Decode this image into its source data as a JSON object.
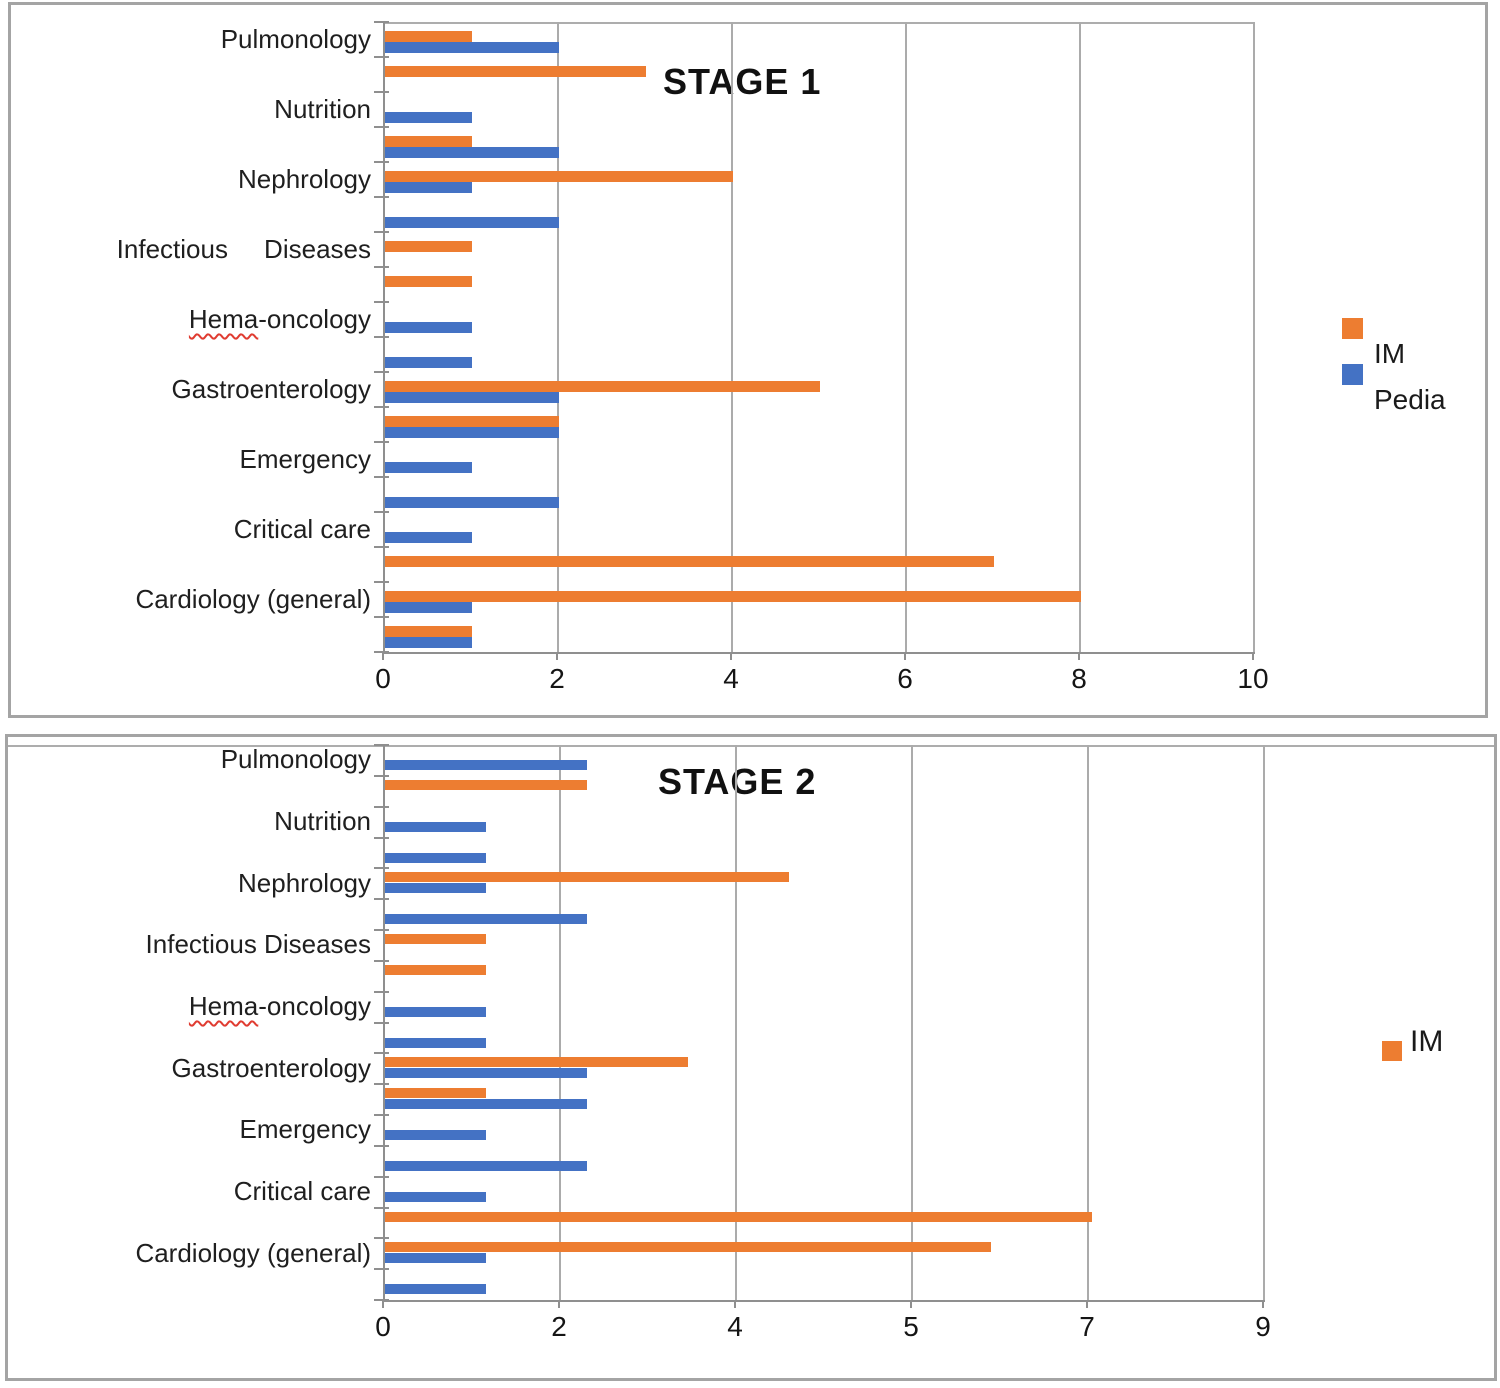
{
  "page": {
    "background": "#ffffff"
  },
  "colors": {
    "im": "#ED7D31",
    "pedia": "#4472C4",
    "gridline": "#ababab",
    "axis": "#8f8f8f"
  },
  "chart_data": [
    {
      "type": "bar",
      "orientation": "horizontal",
      "title": "STAGE 1",
      "categories": [
        "Pulmonology",
        "",
        "Nutrition",
        "",
        "Nephrology",
        "",
        "Infectious     Diseases",
        "",
        "Hema-oncology",
        "",
        "Gastroenterology",
        "",
        "Emergency",
        "",
        "Critical care",
        "",
        "Cardiology (general)",
        ""
      ],
      "series": [
        {
          "name": "IM",
          "color": "#ED7D31",
          "values": [
            1,
            3,
            0,
            1,
            4,
            0,
            1,
            1,
            0,
            0,
            5,
            2,
            0,
            0,
            0,
            7,
            8,
            1
          ]
        },
        {
          "name": "Pedia",
          "color": "#4472C4",
          "values": [
            2,
            0,
            1,
            2,
            1,
            2,
            0,
            0,
            1,
            1,
            2,
            2,
            1,
            2,
            1,
            0,
            1,
            1
          ]
        }
      ],
      "xlim": [
        0,
        10
      ],
      "x_tick_labels": [
        "0",
        "2",
        "4",
        "6",
        "8",
        "10"
      ],
      "x_tick_values": [
        0,
        2,
        4,
        6,
        8,
        10
      ],
      "grid": true,
      "legend_position": "right",
      "legend_entries": [
        "IM",
        "Pedia"
      ],
      "spellcheck_flagged": [
        "Hema-oncology"
      ]
    },
    {
      "type": "bar",
      "orientation": "horizontal",
      "title": "STAGE 2",
      "categories": [
        "Pulmonology",
        "",
        "Nutrition",
        "",
        "Nephrology",
        "",
        "Infectious Diseases",
        "",
        "Hema-oncology",
        "",
        "Gastroenterology",
        "",
        "Emergency",
        "",
        "Critical care",
        "",
        "Cardiology (general)",
        ""
      ],
      "series": [
        {
          "name": "IM",
          "color": "#ED7D31",
          "values": [
            0,
            2,
            0,
            0,
            4,
            0,
            1,
            1,
            0,
            0,
            3,
            1,
            0,
            0,
            0,
            7,
            6,
            0
          ]
        },
        {
          "name": "Pedia",
          "color": "#4472C4",
          "values": [
            2,
            0,
            1,
            1,
            1,
            2,
            0,
            0,
            1,
            1,
            2,
            2,
            1,
            2,
            1,
            0,
            1,
            1
          ]
        }
      ],
      "xlim": [
        0,
        9
      ],
      "x_tick_labels": [
        "0",
        "2",
        "4",
        "5",
        "7",
        "9"
      ],
      "x_tick_values": [
        0,
        1.8,
        3.6,
        5.4,
        7.2,
        9
      ],
      "grid": true,
      "legend_position": "right",
      "legend_entries": [
        "IM"
      ],
      "spellcheck_flagged": [
        "Hema-oncology"
      ]
    }
  ]
}
